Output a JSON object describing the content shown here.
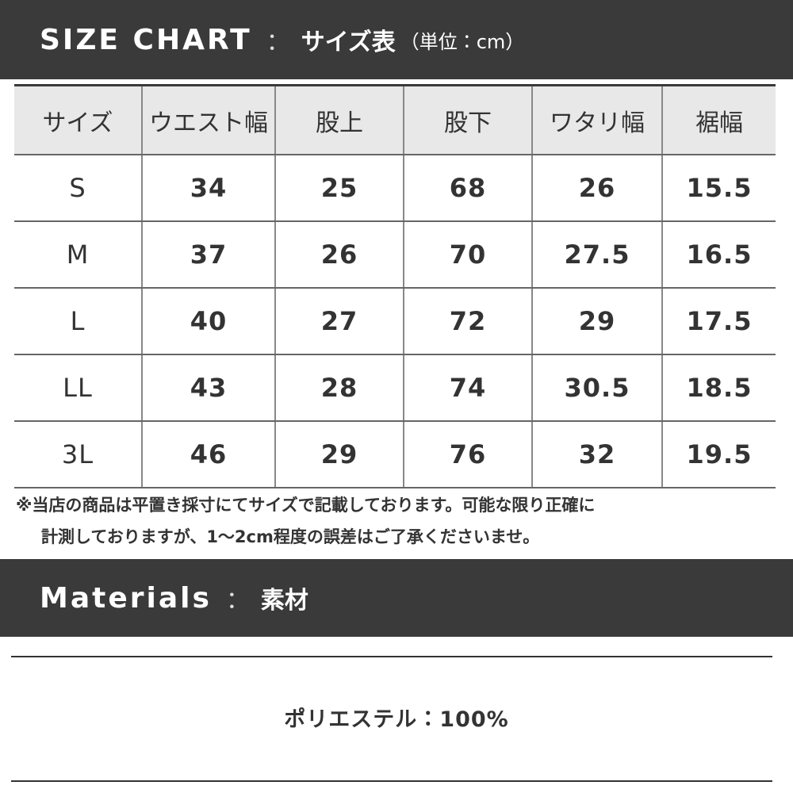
{
  "header": {
    "title": "SIZE CHART",
    "separator": "：",
    "subtitle": "サイズ表",
    "unit": "（単位：cm）"
  },
  "table": {
    "columns": [
      "サイズ",
      "ウエスト幅",
      "股上",
      "股下",
      "ワタリ幅",
      "裾幅"
    ],
    "rows": [
      [
        "S",
        "34",
        "25",
        "68",
        "26",
        "15.5"
      ],
      [
        "M",
        "37",
        "26",
        "70",
        "27.5",
        "16.5"
      ],
      [
        "L",
        "40",
        "27",
        "72",
        "29",
        "17.5"
      ],
      [
        "LL",
        "43",
        "28",
        "74",
        "30.5",
        "18.5"
      ],
      [
        "3L",
        "46",
        "29",
        "76",
        "32",
        "19.5"
      ]
    ]
  },
  "note": [
    "※当店の商品は平置き採寸にてサイズで記載しております。可能な限り正確に",
    "計測しておりますが、1〜2cm程度の誤差はご了承くださいませ。"
  ],
  "materials": {
    "title": "Materials",
    "separator": "：",
    "subtitle": "素材",
    "text": "ポリエステル：100%"
  }
}
